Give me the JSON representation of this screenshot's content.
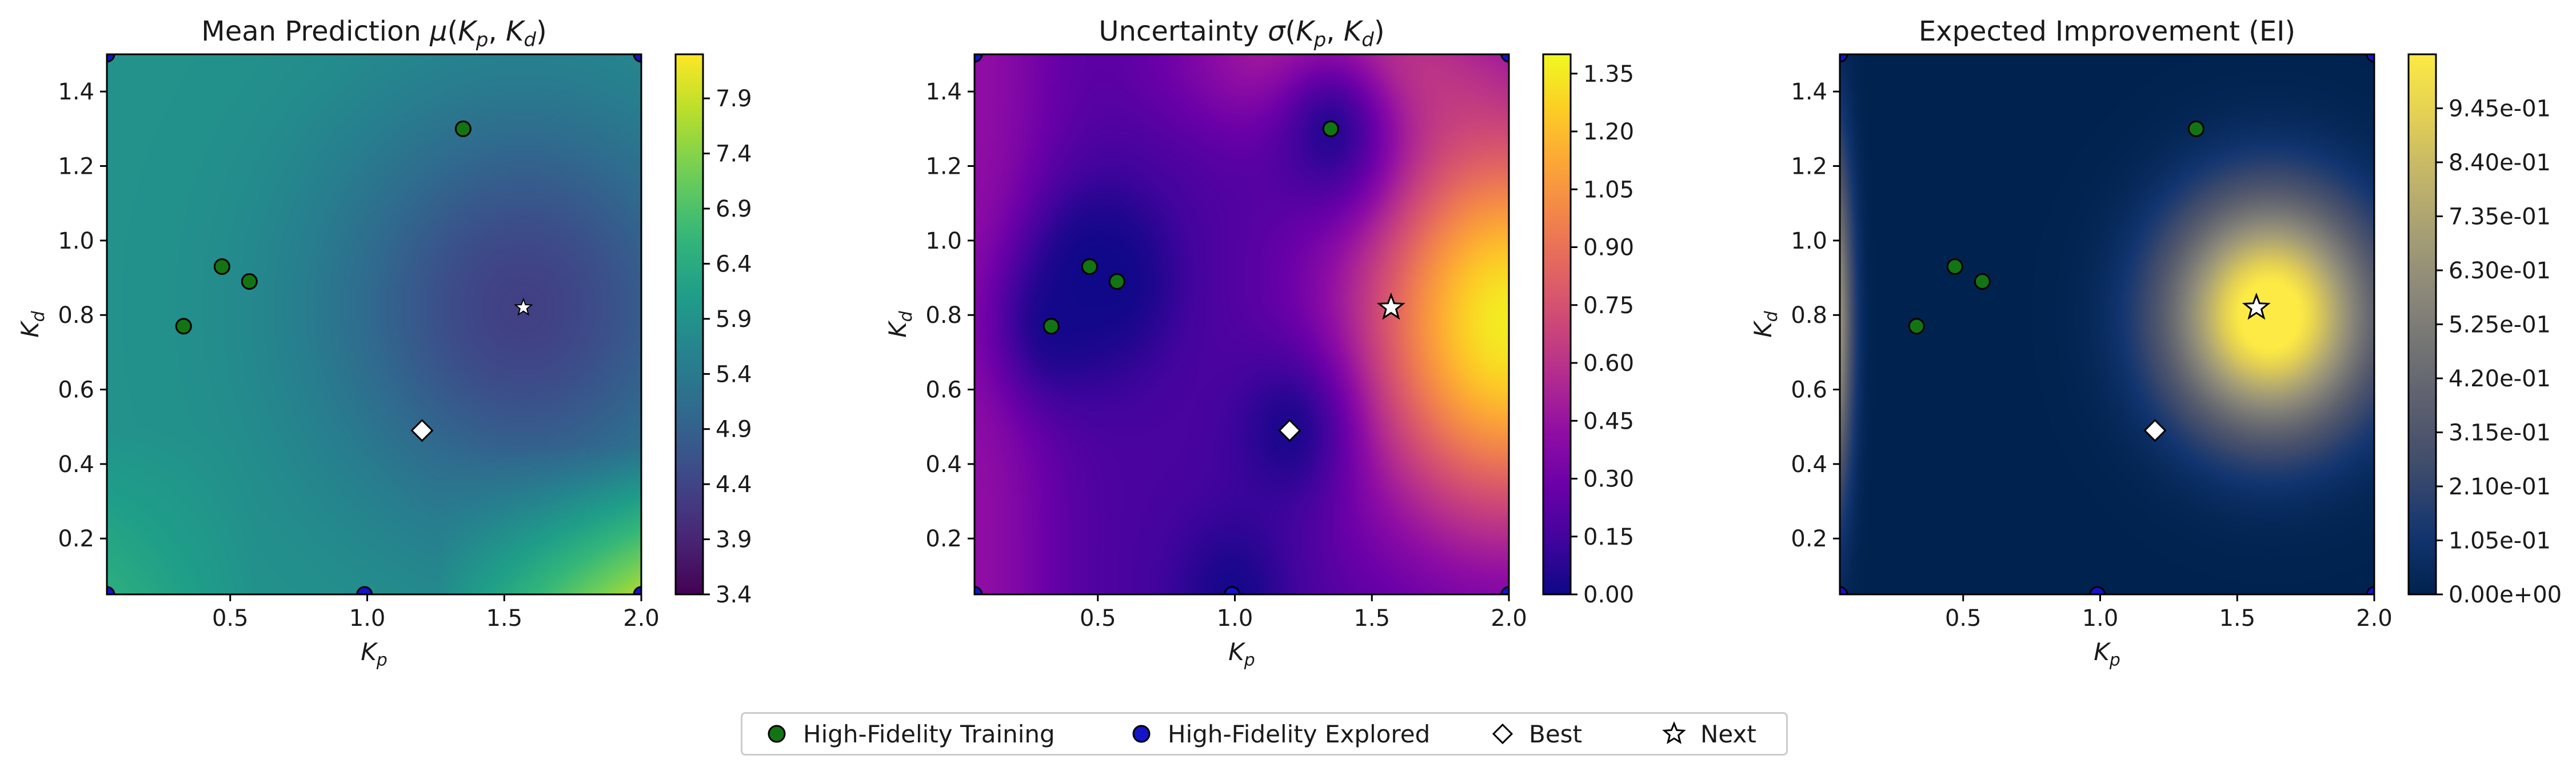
{
  "chart_data": [
    {
      "type": "heatmap",
      "title_parts": [
        "Mean Prediction ",
        "μ",
        "(",
        "K",
        "p",
        ", ",
        "K",
        "d",
        ")"
      ],
      "xlabel": [
        "K",
        "p"
      ],
      "ylabel": [
        "K",
        "d"
      ],
      "xlim": [
        0.05,
        2.0
      ],
      "ylim": [
        0.05,
        1.5
      ],
      "xticks": [
        "0.5",
        "1.0",
        "1.5",
        "2.0"
      ],
      "xtick_values": [
        0.5,
        1.0,
        1.5,
        2.0
      ],
      "yticks": [
        "0.2",
        "0.4",
        "0.6",
        "0.8",
        "1.0",
        "1.2",
        "1.4"
      ],
      "ytick_values": [
        0.2,
        0.4,
        0.6,
        0.8,
        1.0,
        1.2,
        1.4
      ],
      "colormap": "viridis",
      "colorbar_range": [
        3.4,
        8.3
      ],
      "colorbar_ticks": [
        "3.4",
        "3.9",
        "4.4",
        "4.9",
        "5.4",
        "5.9",
        "6.4",
        "6.9",
        "7.4",
        "7.9"
      ],
      "colorbar_values": [
        3.4,
        3.9,
        4.4,
        4.9,
        5.4,
        5.9,
        6.4,
        6.9,
        7.4,
        7.9
      ]
    },
    {
      "type": "heatmap",
      "title_parts": [
        "Uncertainty ",
        "σ",
        "(",
        "K",
        "p",
        ", ",
        "K",
        "d",
        ")"
      ],
      "xlabel": [
        "K",
        "p"
      ],
      "ylabel": [
        "K",
        "d"
      ],
      "xlim": [
        0.05,
        2.0
      ],
      "ylim": [
        0.05,
        1.5
      ],
      "xticks": [
        "0.5",
        "1.0",
        "1.5",
        "2.0"
      ],
      "xtick_values": [
        0.5,
        1.0,
        1.5,
        2.0
      ],
      "yticks": [
        "0.2",
        "0.4",
        "0.6",
        "0.8",
        "1.0",
        "1.2",
        "1.4"
      ],
      "ytick_values": [
        0.2,
        0.4,
        0.6,
        0.8,
        1.0,
        1.2,
        1.4
      ],
      "colormap": "plasma",
      "colorbar_range": [
        0.0,
        1.4
      ],
      "colorbar_ticks": [
        "0.00",
        "0.15",
        "0.30",
        "0.45",
        "0.60",
        "0.75",
        "0.90",
        "1.05",
        "1.20",
        "1.35"
      ],
      "colorbar_values": [
        0.0,
        0.15,
        0.3,
        0.45,
        0.6,
        0.75,
        0.9,
        1.05,
        1.2,
        1.35
      ]
    },
    {
      "type": "heatmap",
      "title_parts": [
        "Expected Improvement (EI)"
      ],
      "xlabel": [
        "K",
        "p"
      ],
      "ylabel": [
        "K",
        "d"
      ],
      "xlim": [
        0.05,
        2.0
      ],
      "ylim": [
        0.05,
        1.5
      ],
      "xticks": [
        "0.5",
        "1.0",
        "1.5",
        "2.0"
      ],
      "xtick_values": [
        0.5,
        1.0,
        1.5,
        2.0
      ],
      "yticks": [
        "0.2",
        "0.4",
        "0.6",
        "0.8",
        "1.0",
        "1.2",
        "1.4"
      ],
      "ytick_values": [
        0.2,
        0.4,
        0.6,
        0.8,
        1.0,
        1.2,
        1.4
      ],
      "colormap": "cividis",
      "colorbar_range": [
        0.0,
        1.05
      ],
      "colorbar_ticks": [
        "0.00e+00",
        "1.05e-01",
        "2.10e-01",
        "3.15e-01",
        "4.20e-01",
        "5.25e-01",
        "6.30e-01",
        "7.35e-01",
        "8.40e-01",
        "9.45e-01"
      ],
      "colorbar_values": [
        0.0,
        0.105,
        0.21,
        0.315,
        0.42,
        0.525,
        0.63,
        0.735,
        0.84,
        0.945
      ]
    }
  ],
  "points": {
    "high_fidelity_training": [
      [
        0.33,
        0.77
      ],
      [
        0.47,
        0.93
      ],
      [
        0.57,
        0.89
      ],
      [
        1.35,
        1.3
      ]
    ],
    "high_fidelity_explored": [
      [
        0.99,
        0.05
      ],
      [
        2.0,
        0.05
      ],
      [
        0.05,
        0.05
      ],
      [
        0.05,
        1.5
      ],
      [
        2.0,
        1.5
      ]
    ],
    "best": [
      1.2,
      0.49
    ],
    "next": [
      1.57,
      0.82
    ]
  },
  "colors": {
    "training": "#137413",
    "explored": "#1414c8",
    "marker_edge": "#000000",
    "best_fill": "#ffffff",
    "next_fill": "#ffffff"
  },
  "legend": {
    "items": [
      {
        "label": "High-Fidelity Training",
        "marker": "circle-green"
      },
      {
        "label": "High-Fidelity Explored",
        "marker": "circle-blue"
      },
      {
        "label": "Best",
        "marker": "diamond-white"
      },
      {
        "label": "Next",
        "marker": "star-white"
      }
    ]
  }
}
